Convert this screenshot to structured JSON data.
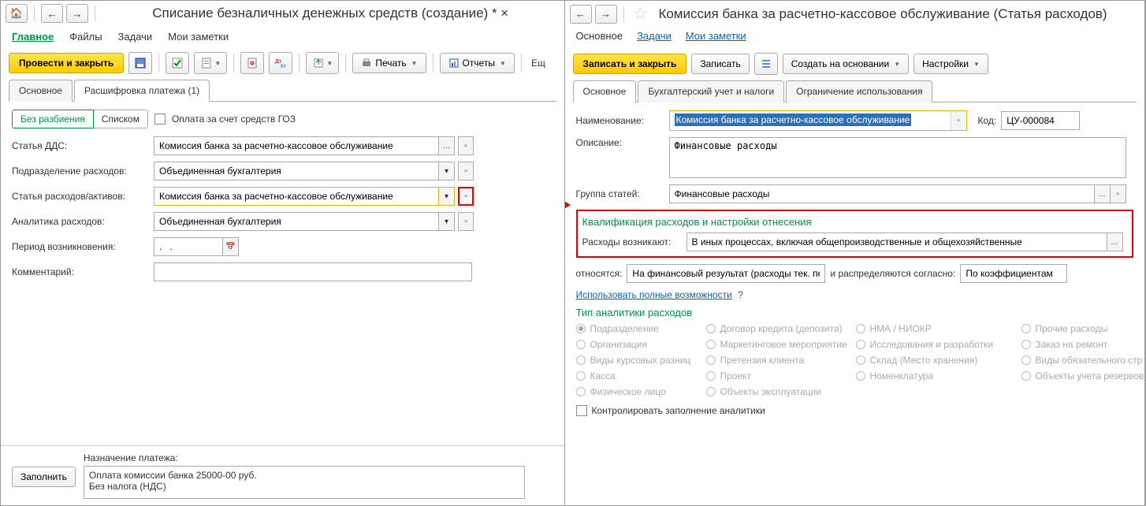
{
  "left": {
    "title": "Списание безналичных денежных средств (создание) * ×",
    "menu": {
      "main": "Главное",
      "files": "Файлы",
      "tasks": "Задачи",
      "notes": "Мои заметки"
    },
    "toolbar": {
      "post_close": "Провести и закрыть",
      "print": "Печать",
      "reports": "Отчеты",
      "more": "Ещ"
    },
    "tabs": {
      "main": "Основное",
      "details": "Расшифровка платежа (1)"
    },
    "seg": {
      "no_split": "Без разбиения",
      "list": "Списком",
      "goz": "Оплата за счет средств ГОЗ"
    },
    "fields": {
      "dds_label": "Статья ДДС:",
      "dds_value": "Комиссия банка за расчетно-кассовое обслуживание",
      "dept_label": "Подразделение расходов:",
      "dept_value": "Объединенная бухгалтерия",
      "item_label": "Статья расходов/активов:",
      "item_value": "Комиссия банка за расчетно-кассовое обслуживание",
      "analytics_label": "Аналитика расходов:",
      "analytics_value": "Объединенная бухгалтерия",
      "period_label": "Период возникновения:",
      "period_value": ".   .",
      "comment_label": "Комментарий:"
    },
    "bottom": {
      "fill": "Заполнить",
      "purpose_label": "Назначение платежа:",
      "purpose_line1": "Оплата комиссии банка 25000-00 руб.",
      "purpose_line2": "Без налога (НДС)"
    }
  },
  "right": {
    "title": "Комиссия банка за расчетно-кассовое обслуживание (Статья расходов)",
    "sublinks": {
      "main": "Основное",
      "tasks": "Задачи",
      "notes": "Мои заметки"
    },
    "toolbar": {
      "save_close": "Записать и закрыть",
      "save": "Записать",
      "create_based": "Создать на основании",
      "settings": "Настройки"
    },
    "tabs": {
      "main": "Основное",
      "accounting": "Бухгалтерский учет и налоги",
      "restrict": "Ограничение использования"
    },
    "fields": {
      "name_label": "Наименование:",
      "name_value": "Комиссия банка за расчетно-кассовое обслуживание",
      "code_label": "Код:",
      "code_value": "ЦУ-000084",
      "desc_label": "Описание:",
      "desc_value": "Финансовые расходы",
      "group_label": "Группа статей:",
      "group_value": "Финансовые расходы"
    },
    "section1": {
      "title": "Квалификация расходов и настройки отнесения",
      "arise_label": "Расходы возникают:",
      "arise_value": "В иных процессах, включая общепроизводственные и общехозяйственные",
      "relate_label": "относятся:",
      "relate_value": "На финансовый результат (расходы тек. перио,",
      "distr_label": "и распределяются согласно:",
      "distr_value": "По коэффициентам",
      "full_link": "Использовать полные возможности"
    },
    "section2": {
      "title": "Тип аналитики расходов",
      "options": [
        [
          "Подразделение",
          true
        ],
        [
          "Договор кредита (депозита)",
          false
        ],
        [
          "НМА / НИОКР",
          false
        ],
        [
          "Прочие расходы",
          false
        ],
        [
          "Организация",
          false
        ],
        [
          "Маркетинговое мероприятие",
          false
        ],
        [
          "Исследования и разработки",
          false
        ],
        [
          "Заказ на ремонт",
          false
        ],
        [
          "Виды курсовых разниц",
          false
        ],
        [
          "Претензия клиента",
          false
        ],
        [
          "Склад (Место хранения)",
          false
        ],
        [
          "Виды обязательного стр",
          false
        ],
        [
          "Касса",
          false
        ],
        [
          "Проект",
          false
        ],
        [
          "Номенклатура",
          false
        ],
        [
          "Объекты учета резервов",
          false
        ],
        [
          "Физическое лицо",
          false
        ],
        [
          "Объекты эксплуатации",
          false
        ]
      ],
      "control": "Контролировать заполнение аналитики"
    }
  },
  "colors": {
    "accent_green": "#009646",
    "highlight_red": "#e00000",
    "yellow_btn": "#ffcc00",
    "link_blue": "#0066cc",
    "selection_blue": "#2f6fb5"
  }
}
